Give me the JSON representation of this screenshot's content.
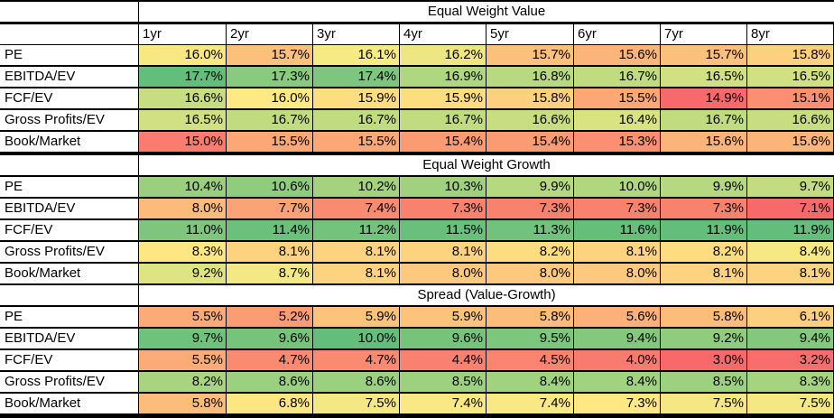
{
  "columns": [
    "1yr",
    "2yr",
    "3yr",
    "4yr",
    "5yr",
    "6yr",
    "7yr",
    "8yr"
  ],
  "sections": [
    {
      "title": "Equal Weight Value",
      "rows": [
        {
          "label": "PE",
          "values": [
            "16.0%",
            "15.7%",
            "16.1%",
            "16.2%",
            "15.7%",
            "15.6%",
            "15.7%",
            "15.8%"
          ],
          "colors": [
            "#f7e883",
            "#fbc07b",
            "#f6ea84",
            "#eee683",
            "#fbc07b",
            "#fbb47a",
            "#fbc07b",
            "#fdd07f"
          ]
        },
        {
          "label": "EBITDA/EV",
          "values": [
            "17.7%",
            "17.3%",
            "17.4%",
            "16.9%",
            "16.8%",
            "16.7%",
            "16.5%",
            "16.5%"
          ],
          "colors": [
            "#63be7b",
            "#88ca7e",
            "#7ec67d",
            "#afd680",
            "#b8d881",
            "#c1db81",
            "#d0e082",
            "#d0e082"
          ]
        },
        {
          "label": "FCF/EV",
          "values": [
            "16.6%",
            "16.0%",
            "15.9%",
            "15.9%",
            "15.8%",
            "15.5%",
            "14.9%",
            "15.1%"
          ],
          "colors": [
            "#c8dd81",
            "#feea84",
            "#fedd81",
            "#fedd81",
            "#fdd07f",
            "#fba876",
            "#f8696b",
            "#fa8f72"
          ]
        },
        {
          "label": "Gross Profits/EV",
          "values": [
            "16.5%",
            "16.7%",
            "16.7%",
            "16.7%",
            "16.6%",
            "16.4%",
            "16.7%",
            "16.6%"
          ],
          "colors": [
            "#d0e082",
            "#c1db81",
            "#c1db81",
            "#c1db81",
            "#c8dd81",
            "#d9e382",
            "#c1db81",
            "#c8dd81"
          ]
        },
        {
          "label": "Book/Market",
          "values": [
            "15.0%",
            "15.5%",
            "15.5%",
            "15.4%",
            "15.4%",
            "15.3%",
            "15.6%",
            "15.6%"
          ],
          "colors": [
            "#f97c6e",
            "#fba876",
            "#fba876",
            "#fa9b74",
            "#fa9b74",
            "#fa8f72",
            "#fbb47a",
            "#fbb47a"
          ]
        }
      ]
    },
    {
      "title": "Equal Weight Growth",
      "rows": [
        {
          "label": "PE",
          "values": [
            "10.4%",
            "10.6%",
            "10.2%",
            "10.3%",
            "9.9%",
            "10.0%",
            "9.9%",
            "9.7%"
          ],
          "colors": [
            "#99cf7e",
            "#8fcc7e",
            "#a5d27f",
            "#9fd17f",
            "#b6d880",
            "#b0d680",
            "#b6d880",
            "#c3db81"
          ]
        },
        {
          "label": "EBITDA/EV",
          "values": [
            "8.0%",
            "7.7%",
            "7.4%",
            "7.3%",
            "7.3%",
            "7.3%",
            "7.3%",
            "7.1%"
          ],
          "colors": [
            "#fcbb7b",
            "#fba276",
            "#f98b71",
            "#f9826f",
            "#f9826f",
            "#f9826f",
            "#f9826f",
            "#f8696b"
          ]
        },
        {
          "label": "FCF/EV",
          "values": [
            "11.0%",
            "11.4%",
            "11.2%",
            "11.5%",
            "11.3%",
            "11.6%",
            "11.9%",
            "11.9%"
          ],
          "colors": [
            "#7ec67d",
            "#6bc17c",
            "#74c37c",
            "#68c07c",
            "#70c27c",
            "#65bf7b",
            "#63be7b",
            "#63be7b"
          ]
        },
        {
          "label": "Gross Profits/EV",
          "values": [
            "8.3%",
            "8.1%",
            "8.1%",
            "8.1%",
            "8.2%",
            "8.1%",
            "8.2%",
            "8.4%"
          ],
          "colors": [
            "#fee683",
            "#fed380",
            "#fed380",
            "#fed380",
            "#fedd81",
            "#fed380",
            "#fedd81",
            "#f6e984"
          ]
        },
        {
          "label": "Book/Market",
          "values": [
            "9.2%",
            "8.7%",
            "8.1%",
            "8.0%",
            "8.0%",
            "8.0%",
            "8.1%",
            "8.1%"
          ],
          "colors": [
            "#dfe483",
            "#f2e884",
            "#fed380",
            "#fdc97e",
            "#fdc97e",
            "#fdc97e",
            "#fed380",
            "#fed380"
          ]
        }
      ]
    },
    {
      "title": "Spread (Value-Growth)",
      "rows": [
        {
          "label": "PE",
          "values": [
            "5.5%",
            "5.2%",
            "5.9%",
            "5.9%",
            "5.8%",
            "5.6%",
            "5.8%",
            "6.1%"
          ],
          "colors": [
            "#fbab77",
            "#fa9d74",
            "#fcc37c",
            "#fcc37c",
            "#fcbd7b",
            "#fbb179",
            "#fcbd7b",
            "#fdd07f"
          ]
        },
        {
          "label": "EBITDA/EV",
          "values": [
            "9.7%",
            "9.6%",
            "10.0%",
            "9.6%",
            "9.5%",
            "9.4%",
            "9.2%",
            "9.4%"
          ],
          "colors": [
            "#6fc27c",
            "#76c47c",
            "#63be7b",
            "#76c47c",
            "#7dc67d",
            "#84c87d",
            "#8fcc7e",
            "#84c87d"
          ]
        },
        {
          "label": "FCF/EV",
          "values": [
            "5.5%",
            "4.7%",
            "4.7%",
            "4.4%",
            "4.5%",
            "4.0%",
            "3.0%",
            "3.2%"
          ],
          "colors": [
            "#fbab77",
            "#fa8b71",
            "#fa8b71",
            "#f98170",
            "#fa8470",
            "#f97a6e",
            "#f8696b",
            "#f86e6c"
          ]
        },
        {
          "label": "Gross Profits/EV",
          "values": [
            "8.2%",
            "8.6%",
            "8.6%",
            "8.5%",
            "8.4%",
            "8.4%",
            "8.5%",
            "8.3%"
          ],
          "colors": [
            "#a8d47f",
            "#9ad07f",
            "#9ad07f",
            "#9ed17f",
            "#a1d27f",
            "#a1d27f",
            "#9ed17f",
            "#a5d37f"
          ]
        },
        {
          "label": "Book/Market",
          "values": [
            "5.8%",
            "6.8%",
            "7.5%",
            "7.4%",
            "7.4%",
            "7.3%",
            "7.5%",
            "7.5%"
          ],
          "colors": [
            "#fcbd7b",
            "#fee683",
            "#f4e884",
            "#f8e984",
            "#f8e984",
            "#fde883",
            "#f4e884",
            "#f4e884"
          ]
        }
      ]
    }
  ]
}
